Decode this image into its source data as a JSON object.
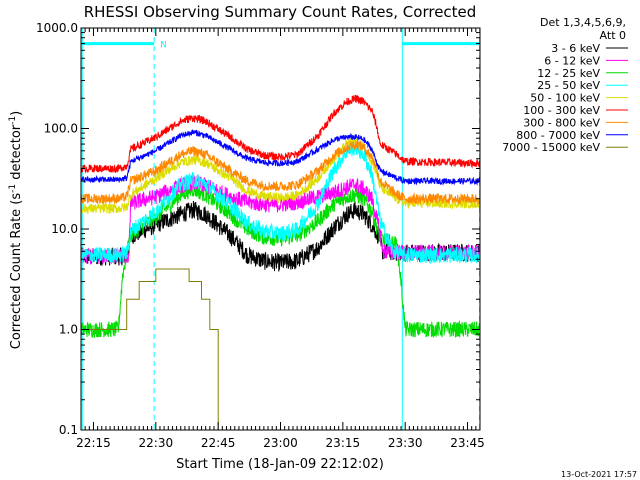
{
  "chart_data": {
    "type": "line",
    "title": "RHESSI Observing Summary Count Rates, Corrected",
    "xlabel": "Start Time (18-Jan-09 22:12:02)",
    "ylabel_main": "Corrected Count Rate (s",
    "ylabel_sup1": "-1",
    "ylabel_mid": " detector",
    "ylabel_sup2": "-1",
    "ylabel_end": ")",
    "y_scale": "log",
    "ylim": [
      0.1,
      1000
    ],
    "y_ticks": [
      {
        "v": 0.1,
        "label": "0.1"
      },
      {
        "v": 1,
        "label": "1.0"
      },
      {
        "v": 10,
        "label": "10.0"
      },
      {
        "v": 100,
        "label": "100.0"
      },
      {
        "v": 1000,
        "label": "1000.0"
      }
    ],
    "xlim_min": [
      0,
      96
    ],
    "x_ticks": [
      {
        "m": 3,
        "label": "22:15"
      },
      {
        "m": 18,
        "label": "22:30"
      },
      {
        "m": 33,
        "label": "22:45"
      },
      {
        "m": 48,
        "label": "23:00"
      },
      {
        "m": 63,
        "label": "23:15"
      },
      {
        "m": 78,
        "label": "23:30"
      },
      {
        "m": 93,
        "label": "23:45"
      }
    ],
    "legend_header": [
      "Det 1,3,4,5,6,9,",
      "Att 0"
    ],
    "legend_position": "right",
    "series": [
      {
        "name": "3 - 6 keV",
        "color": "#000000",
        "noise": 0.09,
        "points": [
          [
            0,
            5.3
          ],
          [
            9,
            5.3
          ],
          [
            11,
            5.4
          ],
          [
            12,
            8.5
          ],
          [
            18,
            11
          ],
          [
            24,
            14
          ],
          [
            27,
            15.5
          ],
          [
            30,
            14
          ],
          [
            36,
            8.5
          ],
          [
            40,
            5.5
          ],
          [
            44,
            4.8
          ],
          [
            48,
            4.6
          ],
          [
            52,
            4.8
          ],
          [
            57,
            6.5
          ],
          [
            61,
            10.5
          ],
          [
            64,
            14
          ],
          [
            66,
            15.5
          ],
          [
            68,
            14
          ],
          [
            70,
            11
          ],
          [
            72,
            8
          ],
          [
            72.5,
            6
          ],
          [
            78,
            5.8
          ],
          [
            96,
            5.8
          ]
        ]
      },
      {
        "name": "6 - 12 keV",
        "color": "#ff00ff",
        "noise": 0.08,
        "points": [
          [
            0,
            5.3
          ],
          [
            11.5,
            5.4
          ],
          [
            12,
            18
          ],
          [
            18,
            21
          ],
          [
            24,
            27
          ],
          [
            27,
            29
          ],
          [
            30,
            27
          ],
          [
            36,
            21
          ],
          [
            40,
            18.5
          ],
          [
            44,
            17.5
          ],
          [
            48,
            17.5
          ],
          [
            52,
            18.5
          ],
          [
            57,
            21
          ],
          [
            62,
            24
          ],
          [
            65,
            27
          ],
          [
            66,
            28
          ],
          [
            68,
            25
          ],
          [
            70,
            20
          ],
          [
            72,
            9
          ],
          [
            72.5,
            6
          ],
          [
            78,
            5.8
          ],
          [
            96,
            5.8
          ]
        ]
      },
      {
        "name": "12 - 25 keV",
        "color": "#00dd00",
        "noise": 0.08,
        "points": [
          [
            0,
            1
          ],
          [
            9,
            1
          ],
          [
            10,
            3.5
          ],
          [
            11,
            5.6
          ],
          [
            12,
            9
          ],
          [
            18,
            13
          ],
          [
            24,
            22
          ],
          [
            27,
            25
          ],
          [
            30,
            22
          ],
          [
            36,
            14
          ],
          [
            40,
            10
          ],
          [
            44,
            8.3
          ],
          [
            48,
            8
          ],
          [
            52,
            8.6
          ],
          [
            57,
            12
          ],
          [
            61,
            18
          ],
          [
            64,
            21
          ],
          [
            66,
            22
          ],
          [
            68,
            20
          ],
          [
            70,
            15
          ],
          [
            72,
            8
          ],
          [
            76,
            7
          ],
          [
            77,
            3
          ],
          [
            78,
            1
          ],
          [
            96,
            1
          ]
        ]
      },
      {
        "name": "25 - 50 keV",
        "color": "#00ffff",
        "noise": 0.08,
        "points": [
          [
            0,
            5.5
          ],
          [
            9,
            5.5
          ],
          [
            11,
            5.7
          ],
          [
            12,
            9.5
          ],
          [
            18,
            15
          ],
          [
            24,
            28
          ],
          [
            27,
            31
          ],
          [
            30,
            28
          ],
          [
            36,
            17
          ],
          [
            40,
            11.5
          ],
          [
            44,
            9.5
          ],
          [
            48,
            9
          ],
          [
            52,
            9.8
          ],
          [
            57,
            18
          ],
          [
            61,
            40
          ],
          [
            64,
            60
          ],
          [
            66,
            65
          ],
          [
            68,
            55
          ],
          [
            70,
            35
          ],
          [
            72,
            12
          ],
          [
            75,
            6
          ],
          [
            78,
            5.5
          ],
          [
            96,
            5.5
          ]
        ]
      },
      {
        "name": "50 - 100 keV",
        "color": "#dddd00",
        "noise": 0.05,
        "points": [
          [
            0,
            16
          ],
          [
            9,
            16
          ],
          [
            11,
            16.5
          ],
          [
            12,
            22
          ],
          [
            18,
            32
          ],
          [
            24,
            46
          ],
          [
            27,
            49
          ],
          [
            30,
            46
          ],
          [
            36,
            32
          ],
          [
            40,
            24
          ],
          [
            44,
            21
          ],
          [
            48,
            20.5
          ],
          [
            52,
            21.5
          ],
          [
            57,
            32
          ],
          [
            61,
            52
          ],
          [
            64,
            70
          ],
          [
            66,
            75
          ],
          [
            68,
            65
          ],
          [
            70,
            48
          ],
          [
            71,
            38
          ],
          [
            72,
            26
          ],
          [
            76,
            20
          ],
          [
            78,
            18
          ],
          [
            96,
            18
          ]
        ]
      },
      {
        "name": "100 - 300 keV",
        "color": "#ff0000",
        "noise": 0.04,
        "points": [
          [
            0,
            40
          ],
          [
            9,
            40
          ],
          [
            11,
            42
          ],
          [
            12,
            62
          ],
          [
            18,
            82
          ],
          [
            24,
            118
          ],
          [
            27,
            128
          ],
          [
            30,
            118
          ],
          [
            36,
            82
          ],
          [
            40,
            62
          ],
          [
            44,
            54
          ],
          [
            48,
            52
          ],
          [
            52,
            55
          ],
          [
            57,
            85
          ],
          [
            61,
            145
          ],
          [
            64,
            185
          ],
          [
            66,
            198
          ],
          [
            68,
            185
          ],
          [
            70,
            150
          ],
          [
            71,
            110
          ],
          [
            72,
            70
          ],
          [
            76,
            55
          ],
          [
            78,
            47
          ],
          [
            96,
            45
          ]
        ]
      },
      {
        "name": "300 - 800 keV",
        "color": "#ff8800",
        "noise": 0.05,
        "points": [
          [
            0,
            20
          ],
          [
            9,
            20
          ],
          [
            11,
            21
          ],
          [
            12,
            30
          ],
          [
            18,
            38
          ],
          [
            24,
            55
          ],
          [
            27,
            60
          ],
          [
            30,
            55
          ],
          [
            36,
            38
          ],
          [
            40,
            30
          ],
          [
            44,
            27
          ],
          [
            48,
            26.5
          ],
          [
            52,
            27.5
          ],
          [
            57,
            38
          ],
          [
            61,
            55
          ],
          [
            64,
            65
          ],
          [
            66,
            70
          ],
          [
            68,
            65
          ],
          [
            70,
            52
          ],
          [
            71,
            42
          ],
          [
            72,
            30
          ],
          [
            76,
            22
          ],
          [
            78,
            20
          ],
          [
            96,
            20
          ]
        ]
      },
      {
        "name": "800 - 7000 keV",
        "color": "#0000ff",
        "noise": 0.03,
        "points": [
          [
            0,
            31
          ],
          [
            9,
            31
          ],
          [
            11,
            32
          ],
          [
            12,
            47
          ],
          [
            18,
            60
          ],
          [
            24,
            85
          ],
          [
            27,
            92
          ],
          [
            30,
            85
          ],
          [
            36,
            62
          ],
          [
            40,
            50
          ],
          [
            44,
            46
          ],
          [
            48,
            45
          ],
          [
            52,
            47
          ],
          [
            57,
            62
          ],
          [
            61,
            78
          ],
          [
            64,
            82
          ],
          [
            66,
            82
          ],
          [
            68,
            78
          ],
          [
            70,
            62
          ],
          [
            71,
            48
          ],
          [
            72,
            38
          ],
          [
            76,
            32
          ],
          [
            78,
            30
          ],
          [
            96,
            30
          ]
        ]
      },
      {
        "name": "7000 - 15000 keV",
        "color": "#808000",
        "noise": 0,
        "points": [
          [
            0,
            1
          ],
          [
            9,
            1
          ],
          [
            11,
            1
          ],
          [
            11,
            2
          ],
          [
            14,
            2
          ],
          [
            14,
            3
          ],
          [
            18,
            3
          ],
          [
            18,
            4
          ],
          [
            26,
            4
          ],
          [
            26,
            3
          ],
          [
            29,
            3
          ],
          [
            29,
            2
          ],
          [
            31,
            2
          ],
          [
            31,
            1
          ],
          [
            33,
            1
          ],
          [
            33,
            0.1
          ]
        ]
      }
    ],
    "annotations": {
      "night_bars": [
        [
          0.3,
          17.6
        ],
        [
          77.3,
          95.9
        ]
      ],
      "night_bar_value": 700,
      "night_label": "N",
      "dashed_lines": [
        17.6,
        95.9
      ],
      "solid_lines": [
        0.3,
        77.3
      ]
    },
    "timestamp": "13-Oct-2021 17:57"
  }
}
